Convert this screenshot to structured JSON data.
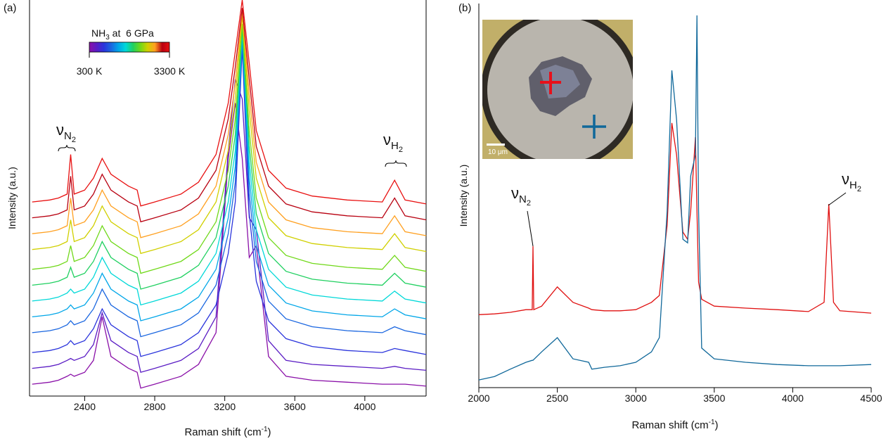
{
  "chart_data": [
    {
      "type": "line",
      "panel_label": "(a)",
      "y_label": "Intensity (a.u.)",
      "x_label": [
        "Raman shift (cm",
        "-1",
        ")"
      ],
      "xlim": [
        2085,
        4350
      ],
      "ylim": [
        0,
        100
      ],
      "xticks": [
        2400,
        2800,
        3200,
        3600,
        4000
      ],
      "colorbar": {
        "title": [
          "NH",
          "3",
          " at  6 GPa"
        ],
        "min_label": "300 K",
        "max_label": "3300 K"
      },
      "annotations": [
        {
          "symbol": "ν",
          "sub": "N",
          "sub2": "2"
        },
        {
          "symbol": "ν",
          "sub": "H",
          "sub2": "2"
        }
      ],
      "x": [
        2100,
        2200,
        2250,
        2300,
        2320,
        2340,
        2400,
        2450,
        2500,
        2550,
        2650,
        2700,
        2720,
        2800,
        2950,
        3050,
        3150,
        3220,
        3260,
        3300,
        3340,
        3380,
        3450,
        3550,
        3700,
        3900,
        4100,
        4170,
        4230,
        4350
      ],
      "series": [
        {
          "color": "#8a10a8",
          "values": [
            3,
            3.5,
            4,
            5,
            5.5,
            5,
            6,
            9,
            20,
            10,
            7,
            6,
            2,
            3,
            5,
            8,
            16,
            60,
            74,
            60,
            35,
            38,
            10,
            5,
            4,
            3.5,
            3,
            3,
            3,
            2.5
          ]
        },
        {
          "color": "#5a1cc4",
          "values": [
            7,
            7.5,
            8,
            9,
            9.5,
            9,
            10,
            13,
            21,
            14,
            11,
            10,
            6,
            7,
            9,
            12,
            20,
            62,
            80,
            75,
            45,
            42,
            14,
            9,
            8,
            7.5,
            7,
            7.5,
            7,
            6.5
          ]
        },
        {
          "color": "#2a34dc",
          "values": [
            11,
            11.5,
            12,
            13,
            14,
            13,
            14,
            17,
            22,
            18,
            15,
            14,
            10,
            11,
            13,
            16,
            23,
            36,
            49,
            88,
            46,
            29,
            19,
            14.5,
            12.5,
            11.5,
            11,
            12,
            11.5,
            10.5
          ]
        },
        {
          "color": "#1a66e0",
          "values": [
            16,
            16.5,
            17,
            18,
            19,
            18,
            19,
            22,
            27,
            23,
            20,
            19,
            15,
            16,
            18,
            21,
            28,
            41,
            54,
            90,
            51,
            34,
            24,
            19.5,
            17.5,
            16.5,
            16,
            17.5,
            16.5,
            15.5
          ]
        },
        {
          "color": "#00a6e8",
          "values": [
            20,
            20.5,
            21,
            22,
            23,
            22,
            23,
            26,
            31,
            27,
            24,
            23,
            19,
            20,
            22,
            25,
            32,
            45,
            58,
            91,
            55,
            38,
            28,
            23.5,
            21.5,
            20.5,
            20,
            22,
            20.5,
            19.5
          ]
        },
        {
          "color": "#00d8d8",
          "values": [
            24,
            24.5,
            25,
            26,
            27,
            26,
            27,
            30,
            35,
            31,
            28,
            27,
            23,
            24,
            26,
            29,
            36,
            49,
            62,
            92,
            59,
            42,
            32,
            27.5,
            25.5,
            24.5,
            24,
            26.5,
            24.5,
            23.5
          ]
        },
        {
          "color": "#20d060",
          "values": [
            28,
            28.5,
            29,
            30,
            32.5,
            30,
            31,
            34,
            39,
            35,
            32,
            31,
            27,
            28,
            30,
            33,
            40,
            53,
            66,
            93,
            63,
            46,
            36,
            31.5,
            29.5,
            28.5,
            28,
            31,
            28.5,
            27.5
          ]
        },
        {
          "color": "#70d818",
          "values": [
            32,
            32.5,
            33,
            34,
            38,
            34,
            35,
            38,
            43,
            39,
            36,
            35,
            31,
            32,
            34,
            37,
            44,
            57,
            70,
            94,
            67,
            50,
            40,
            35.5,
            33.5,
            32.5,
            32,
            35.5,
            32.5,
            31.5
          ]
        },
        {
          "color": "#d0d000",
          "values": [
            37,
            37.5,
            38,
            39,
            44.5,
            39,
            40,
            43,
            48,
            44,
            41,
            40,
            36,
            37,
            39,
            42,
            49,
            62,
            75,
            96,
            72,
            55,
            45,
            40.5,
            38.5,
            37.5,
            37,
            41,
            37.5,
            36.5
          ]
        },
        {
          "color": "#ffa020",
          "values": [
            41,
            41.5,
            42,
            43,
            50,
            43,
            44,
            47,
            52,
            48,
            45,
            44,
            40,
            41,
            43,
            46,
            53,
            66,
            79,
            97,
            76,
            59,
            49,
            44.5,
            42.5,
            41.5,
            41,
            45.5,
            41.5,
            40.5
          ]
        },
        {
          "color": "#b80010",
          "values": [
            45,
            45.5,
            46,
            47,
            55.5,
            47,
            48,
            51,
            56,
            52,
            49,
            48,
            44,
            45,
            47,
            50,
            57,
            70,
            83,
            98,
            80,
            63,
            53,
            48.5,
            46.5,
            45.5,
            45,
            50,
            45.5,
            44.5
          ]
        },
        {
          "color": "#e81010",
          "values": [
            49,
            49.5,
            50,
            51,
            61,
            51,
            52,
            55,
            60,
            56,
            53,
            52,
            48,
            49,
            51,
            54,
            61,
            74,
            87,
            100,
            84,
            67,
            57,
            52.5,
            50.5,
            49.5,
            49,
            54.5,
            49.5,
            48.5
          ]
        }
      ]
    },
    {
      "type": "line",
      "panel_label": "(b)",
      "y_label": "Intensity (a.u.)",
      "x_label": [
        "Raman shift (cm",
        "-1",
        ")"
      ],
      "xlim": [
        2000,
        4500
      ],
      "ylim": [
        0,
        100
      ],
      "xticks": [
        2000,
        2500,
        3000,
        3500,
        4000,
        4500
      ],
      "inset_scale_label": "10 μm",
      "annotations": [
        {
          "symbol": "ν",
          "sub": "N",
          "sub2": "2"
        },
        {
          "symbol": "ν",
          "sub": "H",
          "sub2": "2"
        }
      ],
      "x": [
        2000,
        2100,
        2200,
        2300,
        2340,
        2345,
        2350,
        2400,
        2500,
        2600,
        2700,
        2720,
        2800,
        2900,
        3000,
        3100,
        3150,
        3200,
        3230,
        3260,
        3300,
        3330,
        3350,
        3380,
        3390,
        3400,
        3420,
        3500,
        3700,
        3900,
        4100,
        4200,
        4230,
        4260,
        4300,
        4500
      ],
      "series": [
        {
          "color": "#e01010",
          "values": [
            19,
            19.2,
            19.6,
            20.3,
            20.3,
            36.8,
            20.3,
            21.2,
            26.2,
            22.2,
            20.7,
            20.3,
            20,
            20,
            20.3,
            22.2,
            24,
            42.3,
            68.9,
            60.6,
            40.5,
            38.6,
            46,
            65.2,
            46,
            27.5,
            23,
            21.2,
            20.7,
            20.3,
            19.8,
            22.2,
            47.8,
            22.2,
            20,
            19.4
          ]
        },
        {
          "color": "#10689a",
          "values": [
            2,
            2.9,
            4.8,
            6.6,
            7.1,
            7.1,
            7.3,
            9.3,
            13,
            7.5,
            6.6,
            4.8,
            5.3,
            5.7,
            6.6,
            9.3,
            13,
            46,
            82.6,
            69.8,
            38.6,
            37.7,
            55.1,
            60.6,
            96.9,
            46,
            10.3,
            7.5,
            6.6,
            6,
            5.7,
            5.7,
            5.7,
            5.7,
            5.7,
            6
          ]
        }
      ]
    }
  ]
}
